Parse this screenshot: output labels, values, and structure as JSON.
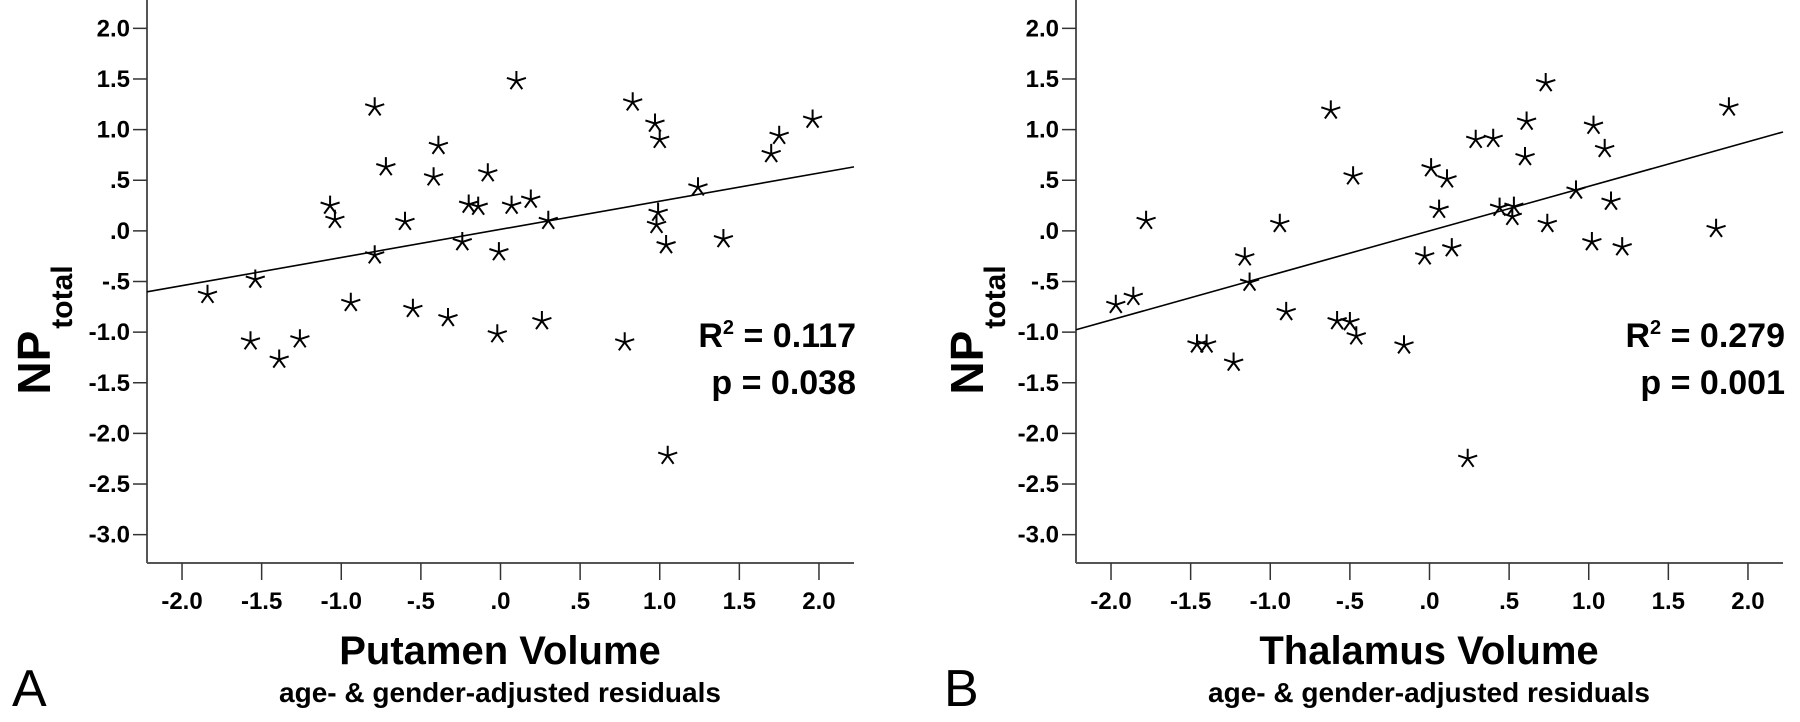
{
  "chart_data": [
    {
      "type": "scatter",
      "panel": "A",
      "title": "",
      "xlabel": "Putamen Volume",
      "xlabel_sub": "age- & gender-adjusted residuals",
      "ylabel": "NP",
      "ylabel_sub": "total",
      "xlim": [
        -2.22,
        2.22
      ],
      "ylim": [
        -3.28,
        2.28
      ],
      "xticks": [
        -2.0,
        -1.5,
        -1.0,
        -0.5,
        0.0,
        0.5,
        1.0,
        1.5,
        2.0
      ],
      "xtick_labels": [
        "-2.0",
        "-1.5",
        "-1.0",
        "-.5",
        ".0",
        ".5",
        "1.0",
        "1.5",
        "2.0"
      ],
      "yticks": [
        2.0,
        1.5,
        1.0,
        0.5,
        0.0,
        -0.5,
        -1.0,
        -1.5,
        -2.0,
        -2.5,
        -3.0
      ],
      "ytick_labels": [
        "2.0",
        "1.5",
        "1.0",
        ".5",
        ".0",
        "-.5",
        "-1.0",
        "-1.5",
        "-2.0",
        "-2.5",
        "-3.0"
      ],
      "marker": "asterisk",
      "grid": false,
      "fit_line": {
        "slope": 0.278,
        "intercept": 0.015
      },
      "annotations": {
        "r2": "R² = 0.117",
        "r2_prefix": "R",
        "r2_sup": "2",
        "r2_value": " = 0.117",
        "p": "p = 0.038"
      },
      "points": [
        [
          -1.84,
          -0.63
        ],
        [
          -1.54,
          -0.48
        ],
        [
          -1.57,
          -1.09
        ],
        [
          -1.39,
          -1.27
        ],
        [
          -1.26,
          -1.07
        ],
        [
          -1.07,
          0.25
        ],
        [
          -1.04,
          0.11
        ],
        [
          -0.94,
          -0.71
        ],
        [
          -0.79,
          1.22
        ],
        [
          -0.72,
          0.63
        ],
        [
          -0.79,
          -0.24
        ],
        [
          -0.6,
          0.09
        ],
        [
          -0.55,
          -0.77
        ],
        [
          -0.42,
          0.53
        ],
        [
          -0.39,
          0.84
        ],
        [
          -0.33,
          -0.86
        ],
        [
          -0.24,
          -0.11
        ],
        [
          -0.2,
          0.26
        ],
        [
          -0.14,
          0.24
        ],
        [
          -0.08,
          0.57
        ],
        [
          -0.01,
          -0.21
        ],
        [
          -0.02,
          -1.02
        ],
        [
          0.07,
          0.25
        ],
        [
          0.1,
          1.48
        ],
        [
          0.19,
          0.31
        ],
        [
          0.3,
          0.1
        ],
        [
          0.26,
          -0.89
        ],
        [
          0.78,
          -1.1
        ],
        [
          0.83,
          1.27
        ],
        [
          0.97,
          1.06
        ],
        [
          1.0,
          0.9
        ],
        [
          0.99,
          0.18
        ],
        [
          0.98,
          0.06
        ],
        [
          1.04,
          -0.14
        ],
        [
          1.24,
          0.43
        ],
        [
          1.4,
          -0.08
        ],
        [
          1.05,
          -2.22
        ],
        [
          1.7,
          0.76
        ],
        [
          1.75,
          0.94
        ],
        [
          1.96,
          1.1
        ]
      ]
    },
    {
      "type": "scatter",
      "panel": "B",
      "title": "",
      "xlabel": "Thalamus Volume",
      "xlabel_sub": "age- & gender-adjusted residuals",
      "ylabel": "NP",
      "ylabel_sub": "total",
      "xlim": [
        -2.22,
        2.22
      ],
      "ylim": [
        -3.28,
        2.28
      ],
      "xticks": [
        -2.0,
        -1.5,
        -1.0,
        -0.5,
        0.0,
        0.5,
        1.0,
        1.5,
        2.0
      ],
      "xtick_labels": [
        "-2.0",
        "-1.5",
        "-1.0",
        "-.5",
        ".0",
        ".5",
        "1.0",
        "1.5",
        "2.0"
      ],
      "yticks": [
        2.0,
        1.5,
        1.0,
        0.5,
        0.0,
        -0.5,
        -1.0,
        -1.5,
        -2.0,
        -2.5,
        -3.0
      ],
      "ytick_labels": [
        "2.0",
        "1.5",
        "1.0",
        ".5",
        ".0",
        "-.5",
        "-1.0",
        "-1.5",
        "-2.0",
        "-2.5",
        "-3.0"
      ],
      "marker": "asterisk",
      "grid": false,
      "fit_line": {
        "slope": 0.44,
        "intercept": 0.0
      },
      "annotations": {
        "r2": "R² = 0.279",
        "r2_prefix": "R",
        "r2_sup": "2",
        "r2_value": " = 0.279",
        "p": "p = 0.001"
      },
      "points": [
        [
          -1.97,
          -0.73
        ],
        [
          -1.86,
          -0.65
        ],
        [
          -1.78,
          0.1
        ],
        [
          -1.46,
          -1.12
        ],
        [
          -1.4,
          -1.12
        ],
        [
          -1.23,
          -1.3
        ],
        [
          -1.16,
          -0.26
        ],
        [
          -1.13,
          -0.51
        ],
        [
          -0.94,
          0.07
        ],
        [
          -0.9,
          -0.8
        ],
        [
          -0.62,
          1.19
        ],
        [
          -0.58,
          -0.89
        ],
        [
          -0.5,
          -0.9
        ],
        [
          -0.48,
          0.54
        ],
        [
          -0.46,
          -1.04
        ],
        [
          -0.16,
          -1.13
        ],
        [
          -0.03,
          -0.25
        ],
        [
          0.01,
          0.62
        ],
        [
          0.06,
          0.21
        ],
        [
          0.11,
          0.51
        ],
        [
          0.14,
          -0.17
        ],
        [
          0.24,
          -2.25
        ],
        [
          0.29,
          0.9
        ],
        [
          0.4,
          0.91
        ],
        [
          0.44,
          0.23
        ],
        [
          0.53,
          0.24
        ],
        [
          0.52,
          0.14
        ],
        [
          0.61,
          1.08
        ],
        [
          0.6,
          0.73
        ],
        [
          0.73,
          1.46
        ],
        [
          0.74,
          0.07
        ],
        [
          0.92,
          0.4
        ],
        [
          1.03,
          1.04
        ],
        [
          1.02,
          -0.11
        ],
        [
          1.1,
          0.81
        ],
        [
          1.14,
          0.29
        ],
        [
          1.21,
          -0.16
        ],
        [
          1.8,
          0.02
        ],
        [
          1.88,
          1.22
        ]
      ]
    }
  ]
}
